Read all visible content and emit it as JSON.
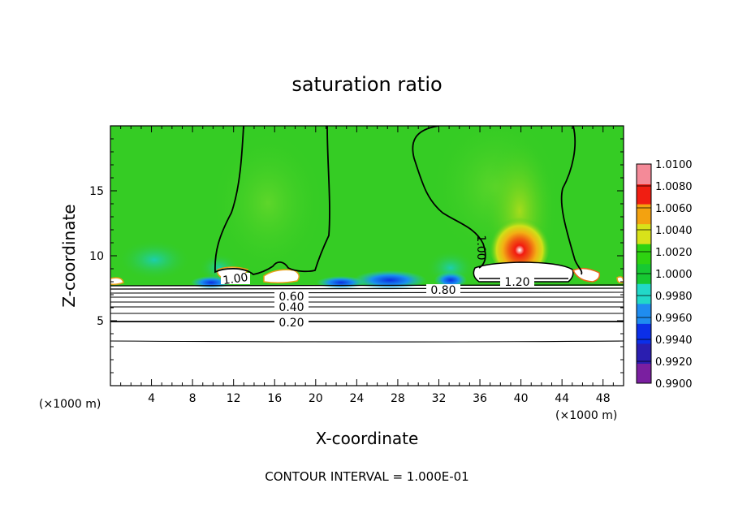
{
  "chart_data": {
    "type": "heatmap",
    "title": "saturation ratio",
    "xlabel": "X-coordinate",
    "ylabel": "Z-coordinate",
    "x_unit_left": "(×1000 m)",
    "x_unit_right": "(×1000 m)",
    "xlim": [
      0,
      50
    ],
    "ylim": [
      0,
      20
    ],
    "x_ticks": [
      "4",
      "8",
      "12",
      "16",
      "20",
      "24",
      "28",
      "32",
      "36",
      "40",
      "44",
      "48"
    ],
    "y_ticks": [
      "5",
      "10",
      "15"
    ],
    "colorbar": {
      "range": [
        0.99,
        1.01
      ],
      "ticks": [
        "1.0100",
        "1.0080",
        "1.0060",
        "1.0040",
        "1.0020",
        "1.0000",
        "0.9980",
        "0.9960",
        "0.9940",
        "0.9920",
        "0.9900"
      ],
      "colors": [
        "#7a1fa0",
        "#2a1eb0",
        "#0b2fe8",
        "#1f8cf0",
        "#22d8c8",
        "#17c832",
        "#2ed211",
        "#d8e21a",
        "#f3a210",
        "#f01e12",
        "#f48a98"
      ]
    },
    "contour_labels": [
      "1.00",
      "1.00",
      "0.60",
      "0.40",
      "0.20",
      "0.80",
      "1.20"
    ],
    "contour_interval_text": "CONTOUR INTERVAL = 1.000E-01",
    "background_color": "#35cc24"
  }
}
